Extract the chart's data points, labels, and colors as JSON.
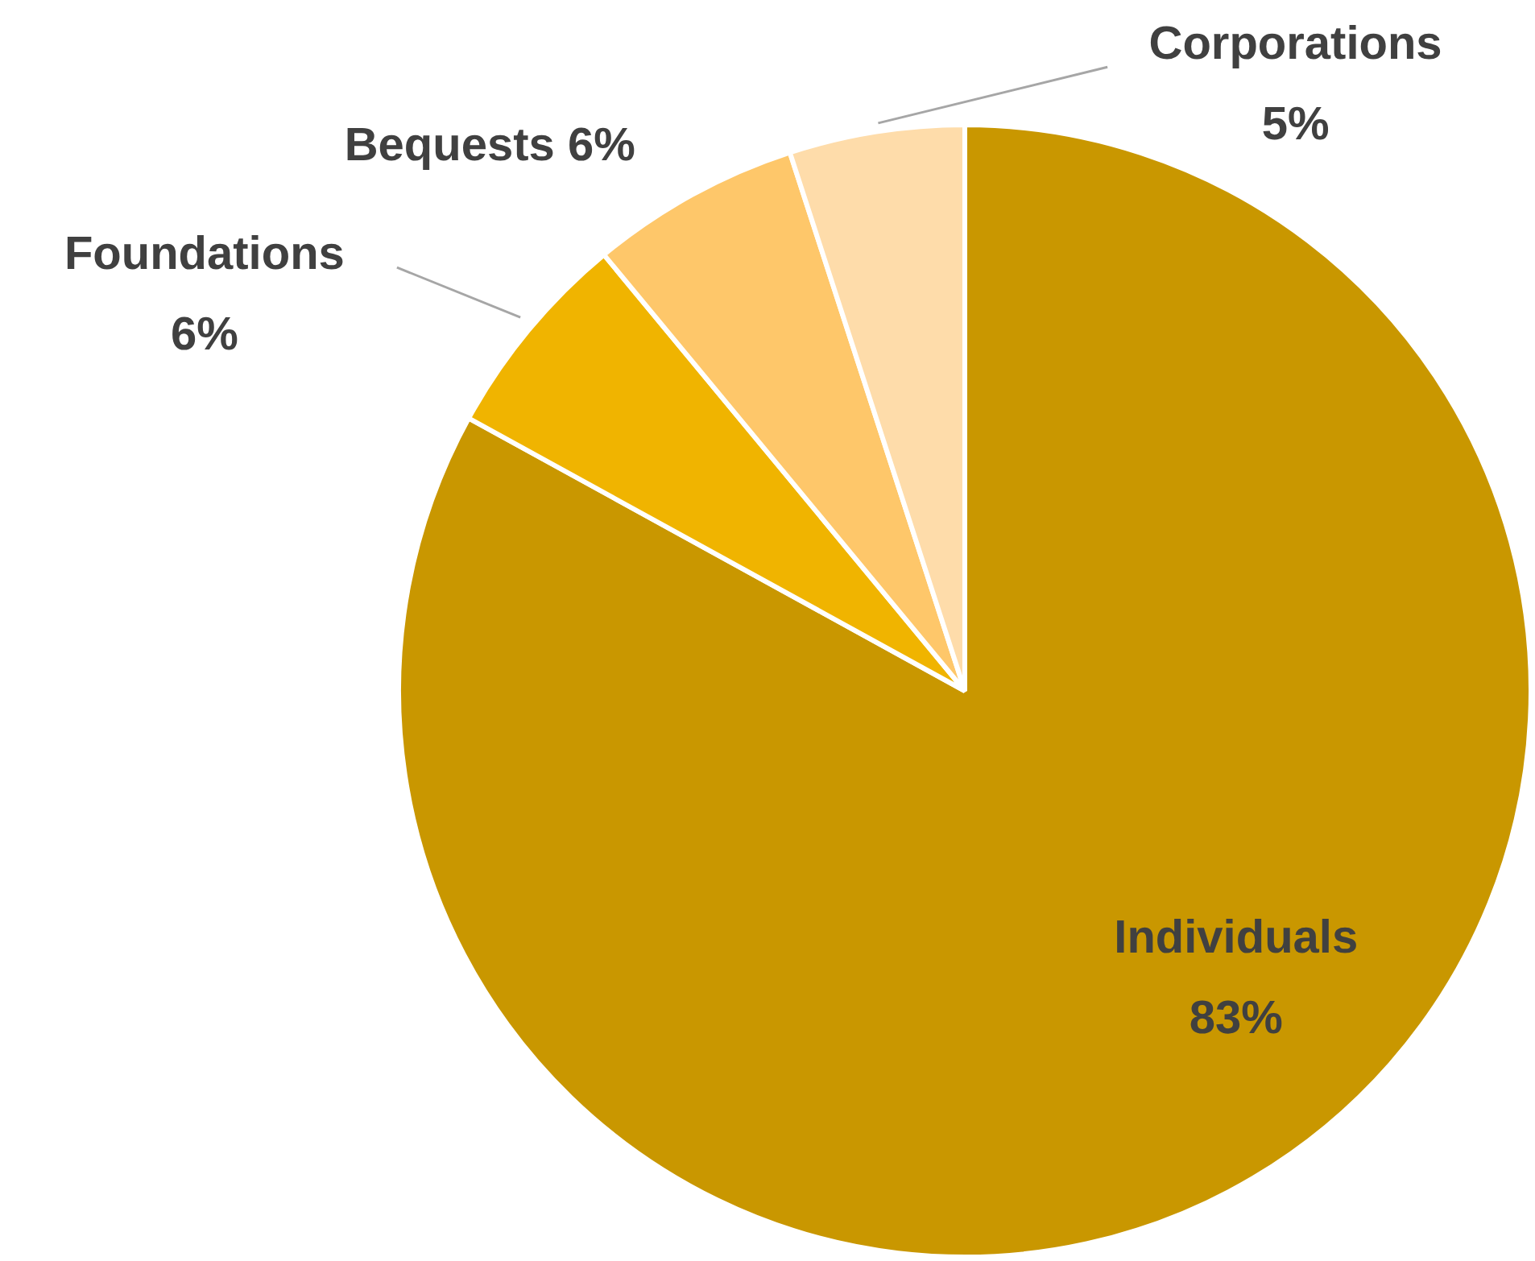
{
  "chart_data": {
    "type": "pie",
    "categories": [
      "Individuals",
      "Foundations",
      "Bequests",
      "Corporations"
    ],
    "values": [
      83,
      6,
      6,
      5
    ],
    "value_labels": [
      "83%",
      "6%",
      "6%",
      "5%"
    ],
    "colors": [
      "#c99700",
      "#f0b400",
      "#fec76a",
      "#fedcaa"
    ],
    "legend": false
  }
}
